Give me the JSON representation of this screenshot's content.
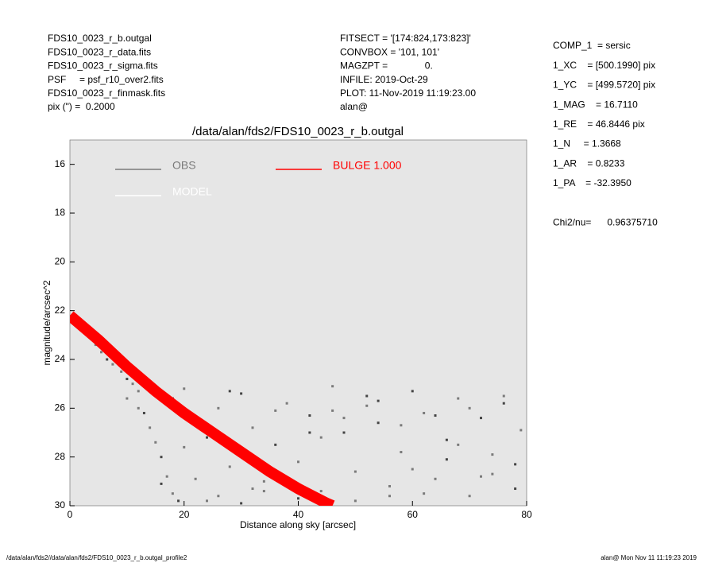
{
  "header_left": [
    "FDS10_0023_r_b.outgal",
    "FDS10_0023_r_data.fits",
    "FDS10_0023_r_sigma.fits",
    "PSF     = psf_r10_over2.fits",
    "FDS10_0023_r_finmask.fits",
    "pix (\") =  0.2000"
  ],
  "header_mid": [
    "FITSECT = '[174:824,173:823]'",
    "CONVBOX = '101, 101'",
    "MAGZPT =              0.",
    "INFILE: 2019-Oct-29",
    "PLOT: 11-Nov-2019 11:19:23.00",
    "alan@"
  ],
  "header_right": [
    "COMP_1  = sersic",
    "1_XC    = [500.1990] pix",
    "1_YC    = [499.5720] pix",
    "1_MAG    = 16.7110",
    "1_RE    = 46.8446 pix",
    "1_N     = 1.3668",
    "1_AR    = 0.8233",
    "1_PA    = -32.3950",
    "Chi2/nu=      0.96375710"
  ],
  "footer_left": "/data/alan/fds2//data/alan/fds2/FDS10_0023_r_b.outgal_profile2",
  "footer_right": "alan@  Mon Nov 11 11:19:23 2019",
  "chart_data": {
    "type": "scatter",
    "title": "/data/alan/fds2/FDS10_0023_r_b.outgal",
    "x_label": "Distance along sky [arcsec]",
    "y_label": "magnitude/arcsec^2",
    "xlim": [
      0,
      80
    ],
    "ylim": [
      15,
      30
    ],
    "y_inverted": true,
    "xticks": [
      0,
      20,
      40,
      60,
      80
    ],
    "yticks": [
      16,
      18,
      20,
      22,
      24,
      26,
      28,
      30
    ],
    "background": "#e6e6e6",
    "series": [
      {
        "name": "OBS",
        "color": "#7a7a7a",
        "kind": "points",
        "x": [
          0.5,
          1.5,
          2.5,
          3.5,
          4.5,
          5.5,
          6.5,
          7.5,
          9,
          10,
          11,
          12,
          13,
          14,
          15,
          16,
          17,
          18,
          19,
          20,
          22,
          24,
          26,
          28,
          30,
          32,
          34,
          36,
          38,
          40,
          42,
          44,
          46,
          48,
          50,
          52,
          54,
          56,
          58,
          60,
          62,
          64,
          66,
          68,
          70,
          72,
          74,
          76,
          78,
          79,
          14,
          18,
          22,
          26,
          30,
          34,
          38,
          42,
          46,
          50,
          54,
          58,
          62,
          66,
          70,
          74,
          78,
          10,
          12,
          16,
          20,
          24,
          28,
          32,
          36,
          40,
          44,
          48,
          52,
          56,
          60,
          64,
          68,
          72,
          76
        ],
        "y": [
          22.2,
          22.5,
          22.7,
          23.0,
          23.4,
          23.7,
          24.0,
          24.2,
          24.5,
          24.8,
          25.0,
          25.3,
          26.2,
          26.8,
          27.4,
          28.0,
          28.8,
          29.5,
          29.8,
          25.2,
          26.5,
          27.2,
          26.0,
          28.4,
          25.4,
          26.8,
          29.0,
          27.5,
          25.8,
          28.2,
          26.3,
          29.4,
          25.1,
          27.0,
          28.6,
          25.9,
          26.6,
          29.2,
          27.8,
          25.3,
          26.2,
          28.9,
          27.3,
          25.6,
          29.6,
          26.4,
          27.9,
          25.5,
          28.3,
          26.9,
          24.9,
          25.6,
          28.9,
          29.6,
          29.9,
          29.4,
          29.1,
          27.0,
          26.1,
          29.8,
          25.7,
          26.7,
          29.5,
          28.1,
          26.0,
          28.7,
          29.3,
          25.6,
          26.0,
          29.1,
          27.6,
          29.8,
          25.3,
          29.3,
          26.1,
          29.7,
          27.2,
          26.4,
          25.5,
          29.6,
          28.5,
          26.3,
          27.5,
          28.8,
          25.8
        ]
      },
      {
        "name": "MODEL",
        "color": "#ffffff",
        "kind": "line",
        "x": [
          0,
          5,
          10,
          15,
          20,
          25,
          30,
          35,
          40,
          45,
          46
        ],
        "y": [
          22.2,
          23.2,
          24.3,
          25.3,
          26.2,
          27.0,
          27.8,
          28.6,
          29.3,
          29.9,
          30.0
        ]
      },
      {
        "name": "BULGE  1.000",
        "color": "#ff0000",
        "kind": "band",
        "x": [
          0,
          5,
          10,
          15,
          20,
          25,
          30,
          35,
          40,
          45,
          46
        ],
        "y": [
          22.2,
          23.2,
          24.3,
          25.3,
          26.2,
          27.0,
          27.8,
          28.6,
          29.3,
          29.9,
          30.0
        ]
      }
    ]
  }
}
